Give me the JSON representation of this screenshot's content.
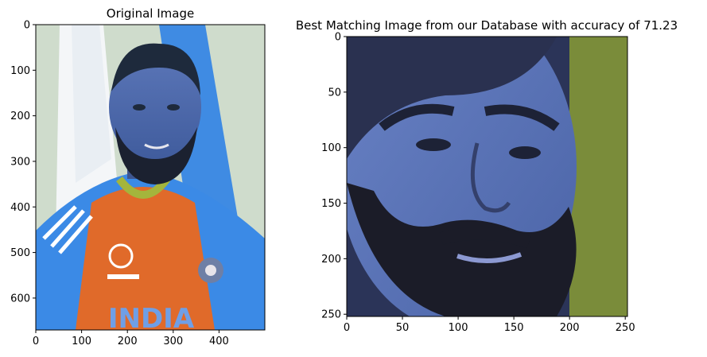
{
  "chart_data": [
    {
      "type": "image",
      "title": "Original Image",
      "xlim": [
        0,
        500
      ],
      "ylim": [
        0,
        670
      ],
      "x_ticks": [
        0,
        100,
        200,
        300,
        400
      ],
      "y_ticks": [
        0,
        100,
        200,
        300,
        400,
        500,
        600
      ],
      "image_description": "Portrait photo of a bearded man wearing a blue and orange India cricket jersey in front of a flag backdrop"
    },
    {
      "type": "image",
      "title": "Best Matching Image from our Database with accuracy of 71.23",
      "xlim": [
        0,
        252
      ],
      "ylim": [
        0,
        252
      ],
      "x_ticks": [
        0,
        50,
        100,
        150,
        200,
        250
      ],
      "y_ticks": [
        0,
        50,
        100,
        150,
        200,
        250
      ],
      "image_description": "Close-up face crop of a bearded man with blue color cast against an olive green background"
    }
  ]
}
